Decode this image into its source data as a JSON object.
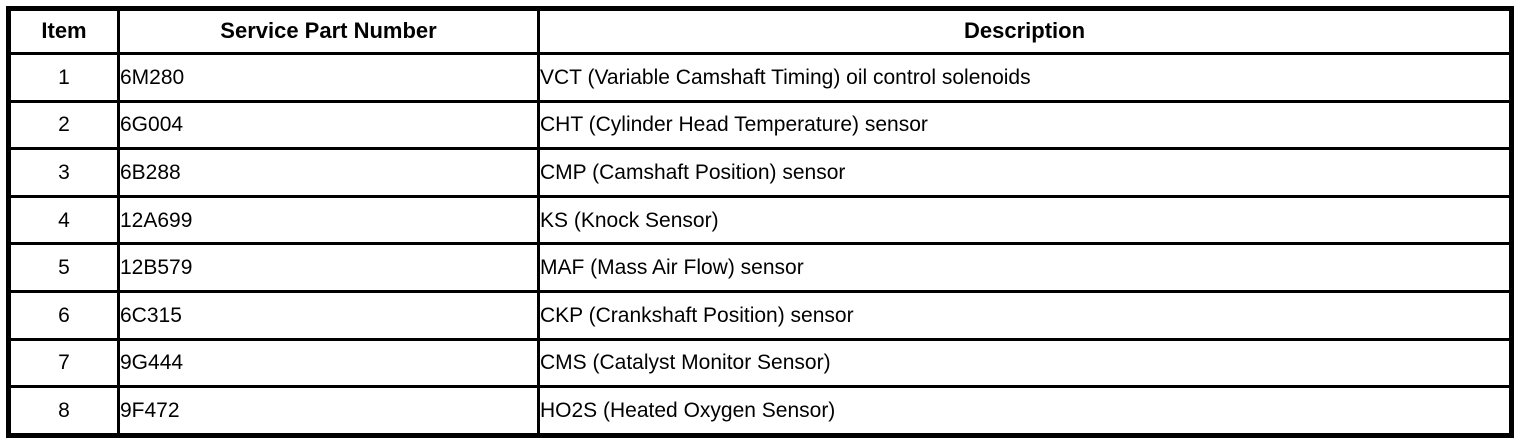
{
  "table": {
    "headers": {
      "item": "Item",
      "part_number": "Service Part Number",
      "description": "Description"
    },
    "rows": [
      {
        "item": "1",
        "part_number": "6M280",
        "description": "VCT (Variable Camshaft Timing) oil control solenoids"
      },
      {
        "item": "2",
        "part_number": "6G004",
        "description": "CHT (Cylinder Head Temperature) sensor"
      },
      {
        "item": "3",
        "part_number": "6B288",
        "description": "CMP (Camshaft Position) sensor"
      },
      {
        "item": "4",
        "part_number": "12A699",
        "description": "KS (Knock Sensor)"
      },
      {
        "item": "5",
        "part_number": "12B579",
        "description": "MAF (Mass Air Flow) sensor"
      },
      {
        "item": "6",
        "part_number": "6C315",
        "description": "CKP (Crankshaft Position) sensor"
      },
      {
        "item": "7",
        "part_number": "9G444",
        "description": "CMS (Catalyst Monitor Sensor)"
      },
      {
        "item": "8",
        "part_number": "9F472",
        "description": "HO2S (Heated Oxygen Sensor)"
      }
    ],
    "border_color": "#000000",
    "background_color": "#ffffff"
  }
}
